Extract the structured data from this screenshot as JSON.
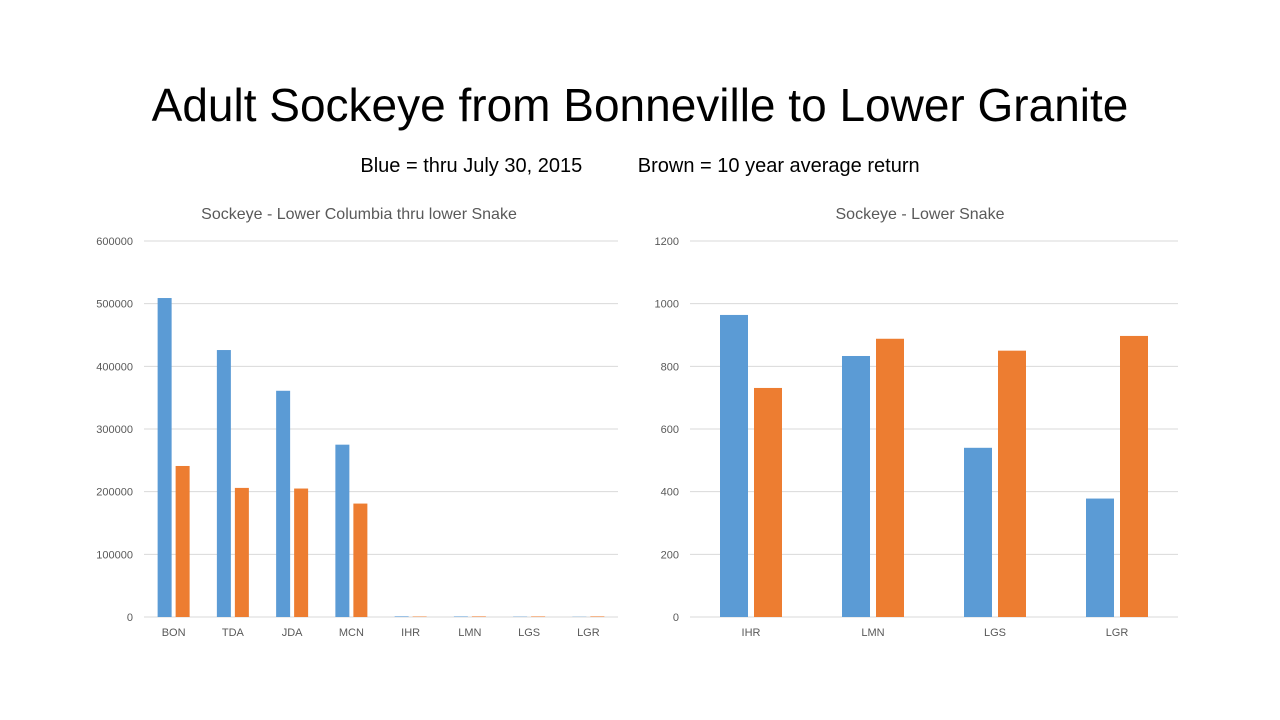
{
  "slide": {
    "title": "Adult Sockeye from Bonneville to Lower Granite",
    "subtitle_blue": "Blue = thru July 30, 2015",
    "subtitle_brown": "Brown = 10 year average return"
  },
  "chart_data": [
    {
      "type": "bar",
      "title": "Sockeye - Lower Columbia thru lower Snake",
      "categories": [
        "BON",
        "TDA",
        "JDA",
        "MCN",
        "IHR",
        "LMN",
        "LGS",
        "LGR"
      ],
      "series": [
        {
          "color": "#5b9bd5",
          "values": [
            509000,
            426000,
            361000,
            275000,
            964,
            833,
            540,
            378
          ]
        },
        {
          "color": "#ed7d31",
          "values": [
            241000,
            206000,
            205000,
            181000,
            731,
            888,
            850,
            897
          ]
        }
      ],
      "ylim": [
        0,
        600000
      ],
      "yticks": [
        0,
        100000,
        200000,
        300000,
        400000,
        500000,
        600000
      ],
      "grid": true
    },
    {
      "type": "bar",
      "title": "Sockeye - Lower Snake",
      "categories": [
        "IHR",
        "LMN",
        "LGS",
        "LGR"
      ],
      "series": [
        {
          "color": "#5b9bd5",
          "values": [
            964,
            833,
            540,
            378
          ]
        },
        {
          "color": "#ed7d31",
          "values": [
            731,
            888,
            850,
            897
          ]
        }
      ],
      "ylim": [
        0,
        1200
      ],
      "yticks": [
        0,
        200,
        400,
        600,
        800,
        1000,
        1200
      ],
      "grid": true
    }
  ]
}
